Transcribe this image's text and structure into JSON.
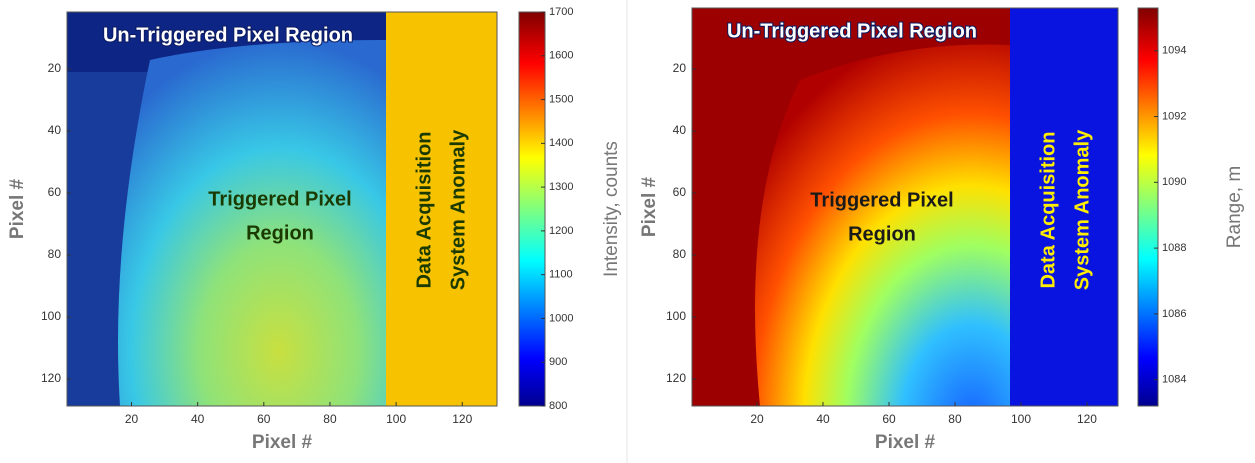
{
  "chart_data": [
    {
      "type": "heatmap",
      "xlabel": "Pixel #",
      "ylabel": "Pixel #",
      "xlim": [
        0.5,
        130.5
      ],
      "ylim": [
        1.6,
        128.7
      ],
      "xticks": [
        20,
        40,
        60,
        80,
        100,
        120
      ],
      "yticks": [
        20,
        40,
        60,
        80,
        100,
        120
      ],
      "colorbar": {
        "label": "Intensity, counts",
        "lim": [
          800,
          1700
        ],
        "ticks": [
          800,
          900,
          1000,
          1100,
          1200,
          1300,
          1400,
          1500,
          1600,
          1700
        ]
      },
      "annotations": [
        {
          "lines": [
            "Un-Triggered Pixel Region"
          ],
          "color": "#ffffff"
        },
        {
          "lines": [
            "Triggered Pixel",
            "Region"
          ],
          "color": "#1a3a00"
        },
        {
          "lines": [
            "Data Acquisition",
            "System Anomaly"
          ],
          "color": "#1a3a00"
        }
      ]
    },
    {
      "type": "heatmap",
      "xlabel": "Pixel #",
      "ylabel": "Pixel #",
      "xlim": [
        0.3,
        129.4
      ],
      "ylim": [
        0.3,
        128.7
      ],
      "xticks": [
        20,
        40,
        60,
        80,
        100,
        120
      ],
      "yticks": [
        20,
        40,
        60,
        80,
        100,
        120
      ],
      "colorbar": {
        "label": "Range, m",
        "lim": [
          1083.2,
          1095.3
        ],
        "ticks": [
          1084,
          1086,
          1088,
          1090,
          1092,
          1094
        ]
      },
      "annotations": [
        {
          "lines": [
            "Un-Triggered Pixel Region"
          ],
          "color": "#ffffff"
        },
        {
          "lines": [
            "Triggered Pixel",
            "Region"
          ],
          "color": "#1a1a1a"
        },
        {
          "lines": [
            "Data Acquisition",
            "System Anomaly"
          ],
          "color": "#ffee00"
        }
      ]
    }
  ]
}
